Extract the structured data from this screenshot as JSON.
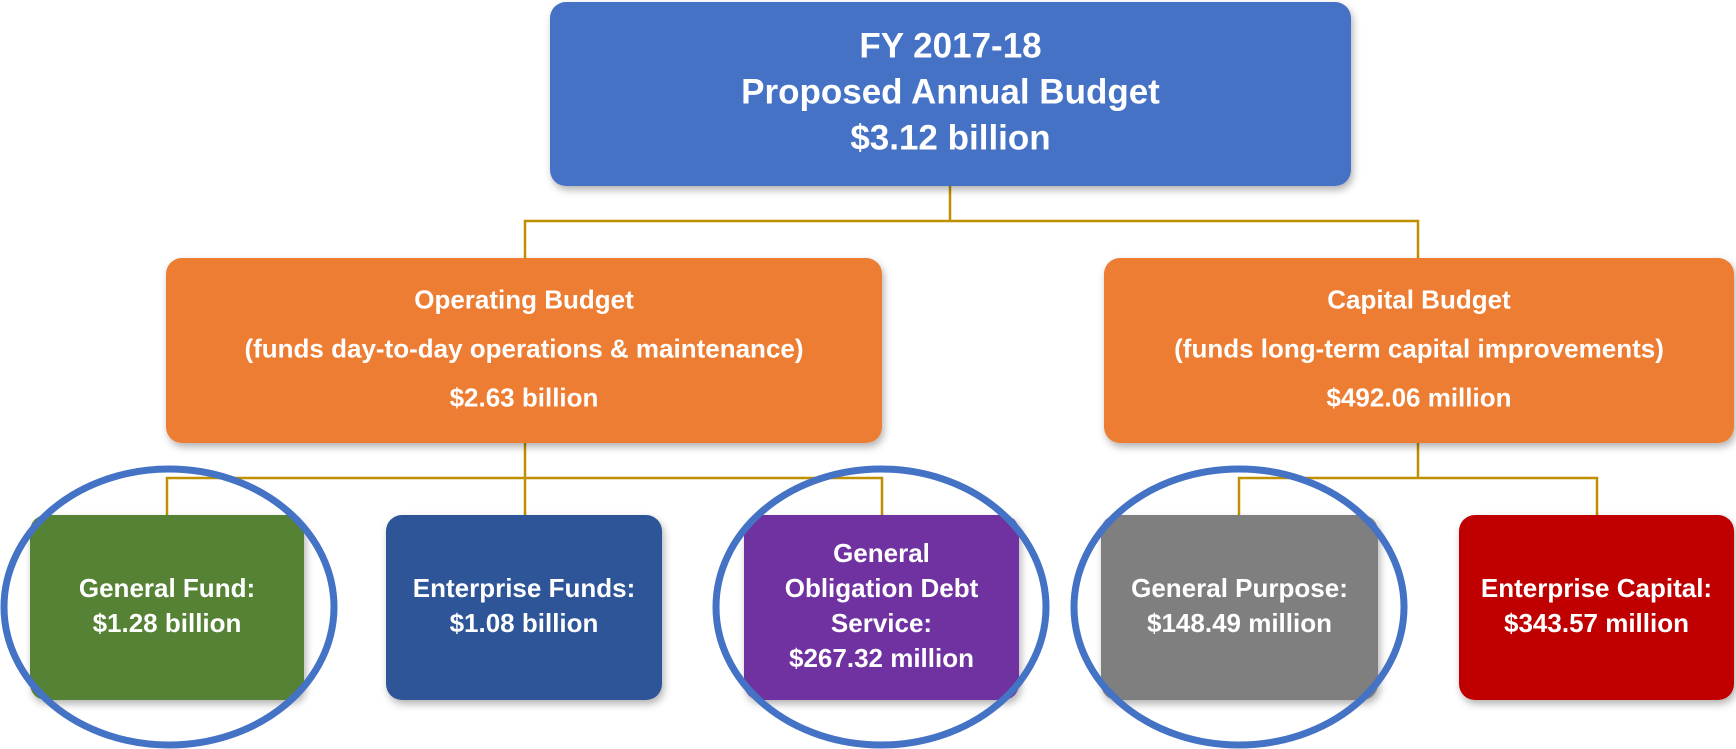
{
  "nodes": [
    {
      "lines": [
        "FY 2017-18",
        "Proposed Annual Budget",
        "$3.12 billion"
      ]
    },
    {
      "lines": [
        "Operating Budget",
        "(funds day-to-day operations & maintenance)",
        "$2.63 billion"
      ]
    },
    {
      "lines": [
        "Capital Budget",
        "(funds long-term capital improvements)",
        "$492.06 million"
      ]
    },
    {
      "lines": [
        "General Fund:",
        "$1.28 billion"
      ]
    },
    {
      "lines": [
        "Enterprise Funds:",
        "$1.08 billion"
      ]
    },
    {
      "lines": [
        "General",
        "Obligation Debt",
        "Service:",
        "$267.32 million"
      ]
    },
    {
      "lines": [
        "General Purpose:",
        "$148.49 million"
      ]
    },
    {
      "lines": [
        "Enterprise Capital:",
        "$343.57 million"
      ]
    }
  ]
}
